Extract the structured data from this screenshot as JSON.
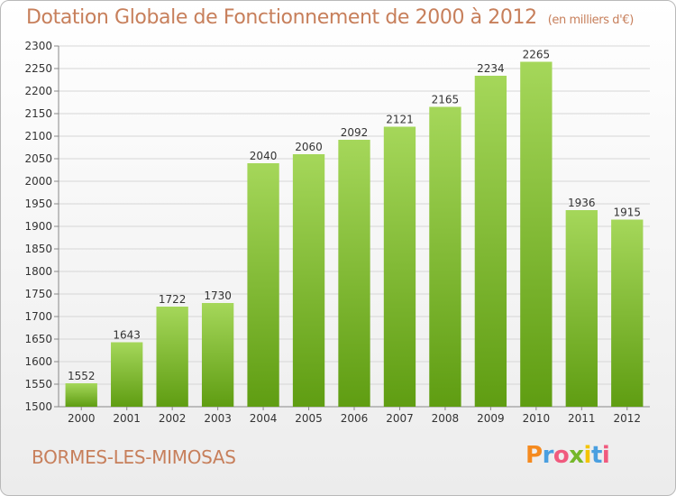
{
  "header": {
    "title": "Dotation Globale de Fonctionnement de 2000 à 2012",
    "subtitle": "(en milliers d'€)"
  },
  "footer": {
    "commune": "BORMES-LES-MIMOSAS",
    "logo_text": "Proxiti"
  },
  "colors": {
    "bar_top": "#a5d75a",
    "bar_bottom": "#5f9d12",
    "title": "#c77f5b",
    "grid": "#d6d6d6"
  },
  "chart_data": {
    "type": "bar",
    "categories": [
      "2000",
      "2001",
      "2002",
      "2003",
      "2004",
      "2005",
      "2006",
      "2007",
      "2008",
      "2009",
      "2010",
      "2011",
      "2012"
    ],
    "values": [
      1552,
      1643,
      1722,
      1730,
      2040,
      2060,
      2092,
      2121,
      2165,
      2234,
      2265,
      1936,
      1915
    ],
    "yticks": [
      1500,
      1550,
      1600,
      1650,
      1700,
      1750,
      1800,
      1850,
      1900,
      1950,
      2000,
      2050,
      2100,
      2150,
      2200,
      2250,
      2300
    ],
    "ylim": [
      1500,
      2300
    ],
    "grid": true,
    "legend": "none"
  }
}
